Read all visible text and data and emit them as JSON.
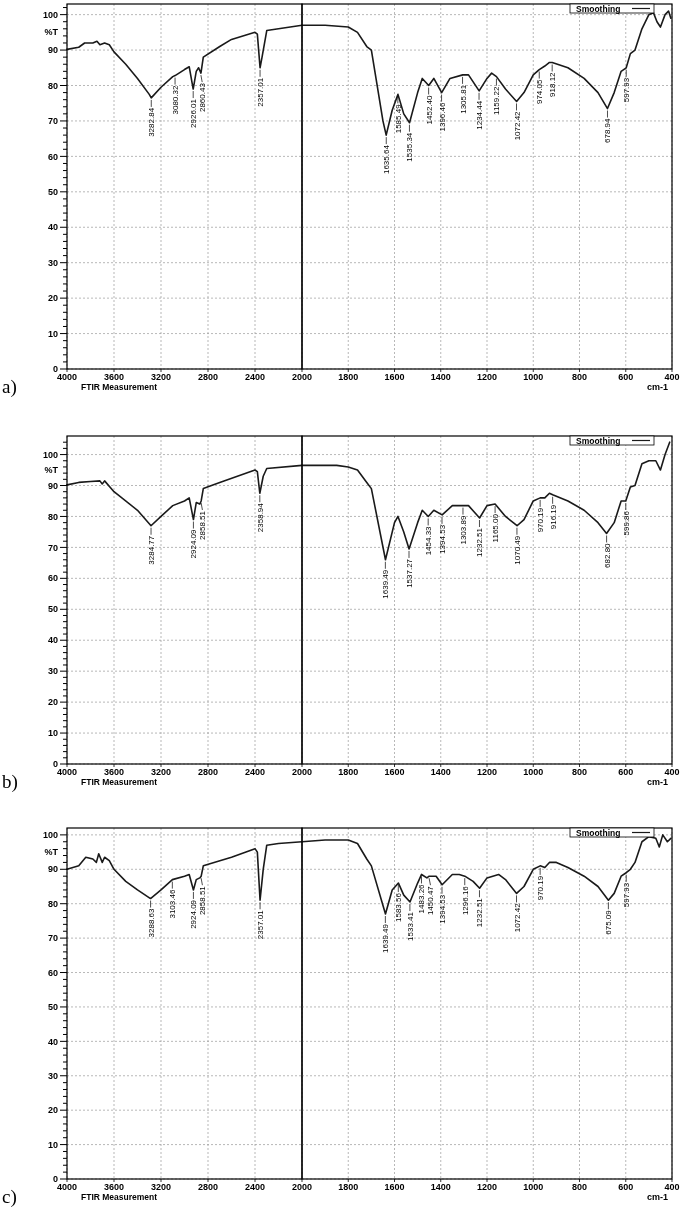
{
  "chart_data": [
    {
      "type": "line",
      "title": "a)",
      "ylabel": "%T",
      "grid": true,
      "marker": "none",
      "line_style": "solid",
      "tick_labels": true,
      "xlim": [
        4000,
        2000
      ],
      "xticks": [
        4000,
        3600,
        3200,
        2800,
        2400,
        2000
      ],
      "ylim": [
        0,
        103
      ],
      "yticks": [
        0,
        {
          "value": 2,
          "label": null
        },
        {
          "value": 4,
          "label": null
        },
        {
          "value": 6,
          "label": null
        },
        {
          "value": 8,
          "label": null
        },
        10,
        {
          "value": 12,
          "label": null
        },
        {
          "value": 14,
          "label": null
        },
        {
          "value": 16,
          "label": null
        },
        {
          "value": 18,
          "label": null
        },
        20,
        {
          "value": 22,
          "label": null
        },
        {
          "value": 24,
          "label": null
        },
        {
          "value": 26,
          "label": null
        },
        {
          "value": 28,
          "label": null
        },
        30,
        {
          "value": 32,
          "label": null
        },
        {
          "value": 34,
          "label": null
        },
        {
          "value": 36,
          "label": null
        },
        {
          "value": 38,
          "label": null
        },
        40,
        {
          "value": 42,
          "label": null
        },
        {
          "value": 44,
          "label": null
        },
        {
          "value": 46,
          "label": null
        },
        {
          "value": 48,
          "label": null
        },
        50,
        {
          "value": 52,
          "label": null
        },
        {
          "value": 54,
          "label": null
        },
        {
          "value": 56,
          "label": null
        },
        {
          "value": 58,
          "label": null
        },
        60,
        {
          "value": 62,
          "label": null
        },
        {
          "value": 64,
          "label": null
        },
        {
          "value": 66,
          "label": null
        },
        {
          "value": 68,
          "label": null
        },
        70,
        {
          "value": 72,
          "label": null
        },
        {
          "value": 74,
          "label": null
        },
        {
          "value": 76,
          "label": null
        },
        {
          "value": 78,
          "label": null
        },
        80,
        {
          "value": 82,
          "label": null
        },
        {
          "value": 84,
          "label": null
        },
        {
          "value": 86,
          "label": null
        },
        {
          "value": 88,
          "label": null
        },
        90,
        {
          "value": 92,
          "label": null
        },
        {
          "value": 94,
          "label": null
        },
        {
          "value": 96,
          "label": null
        },
        {
          "value": 98,
          "label": null
        },
        100,
        {
          "value": 102,
          "label": null
        }
      ],
      "series": [
        {
          "color": "#1a1a1a",
          "x": [
            4000,
            3900,
            3850,
            3780,
            3745,
            3720,
            3680,
            3640,
            3600,
            3500,
            3400,
            3300,
            3283,
            3200,
            3100,
            3080,
            3000,
            2960,
            2926,
            2900,
            2880,
            2860,
            2840,
            2700,
            2600,
            2400,
            2380,
            2357,
            2340,
            2300,
            2200,
            2100,
            2000
          ],
          "values": [
            90.2,
            90.8,
            92,
            92,
            92.5,
            91.5,
            92,
            91.5,
            89.5,
            86,
            82,
            77.5,
            76.5,
            79.5,
            82.5,
            82.8,
            84.5,
            85.3,
            79,
            84,
            85,
            83.5,
            88,
            91,
            93,
            95,
            94.5,
            85,
            88,
            95.5,
            96,
            96.5,
            97
          ]
        }
      ],
      "annotations": [
        "FTIR Measurement",
        {
          "text": "3282.84",
          "x": 3282.84,
          "y": 76.5
        },
        {
          "text": "3080.32",
          "x": 3080.32,
          "y": 82.8
        },
        {
          "text": "2926.01",
          "x": 2926.01,
          "y": 79
        },
        {
          "text": "2860.43",
          "x": 2860.43,
          "y": 83.5
        },
        {
          "text": "2357.01",
          "x": 2357.01,
          "y": 85
        }
      ]
    },
    {
      "type": "line",
      "xlabel": "cm-1",
      "legend": "top right",
      "grid": true,
      "marker": "none",
      "line_style": "solid",
      "tick_labels": "x",
      "xlim": [
        2000,
        400
      ],
      "xticks": [
        1800,
        1600,
        1400,
        1200,
        1000,
        800,
        600,
        400
      ],
      "ylim": [
        0,
        103
      ],
      "yticks": [
        0,
        10,
        20,
        30,
        40,
        50,
        60,
        70,
        80,
        90,
        100
      ],
      "series": [
        {
          "name": "Smoothing",
          "color": "#1a1a1a",
          "x": [
            2000,
            1900,
            1800,
            1760,
            1720,
            1700,
            1680,
            1650,
            1636,
            1610,
            1585,
            1560,
            1535,
            1500,
            1480,
            1452,
            1430,
            1396,
            1360,
            1305,
            1280,
            1234,
            1200,
            1180,
            1159,
            1120,
            1072,
            1040,
            1000,
            974,
            950,
            930,
            918,
            850,
            780,
            720,
            679,
            650,
            620,
            598,
            580,
            560,
            530,
            500,
            480,
            465,
            450,
            430,
            415,
            405
          ],
          "values": [
            97,
            97,
            96.5,
            95,
            91,
            90,
            82,
            70,
            66,
            73,
            77.5,
            72,
            69.5,
            78,
            82,
            80,
            82,
            78,
            82,
            83,
            83,
            78.5,
            82,
            83.5,
            82.5,
            79,
            75.5,
            78,
            83,
            84.5,
            85.5,
            86.5,
            86.5,
            85,
            82,
            78,
            73.5,
            78,
            84,
            85,
            89,
            90,
            96,
            100,
            100.5,
            98,
            96.5,
            100,
            101,
            99
          ]
        }
      ],
      "annotations": [
        {
          "text": "1635.64",
          "x": 1635.64,
          "y": 66
        },
        {
          "text": "1585.49",
          "x": 1585.49,
          "y": 77.5
        },
        {
          "text": "1535.34",
          "x": 1535.34,
          "y": 69.5
        },
        {
          "text": "1452.40",
          "x": 1452.4,
          "y": 80
        },
        {
          "text": "1396.46",
          "x": 1396.46,
          "y": 78
        },
        {
          "text": "1305.81",
          "x": 1305.81,
          "y": 83
        },
        {
          "text": "1234.44",
          "x": 1234.44,
          "y": 78.5
        },
        {
          "text": "1159.22",
          "x": 1159.22,
          "y": 82.5
        },
        {
          "text": "1072.42",
          "x": 1072.42,
          "y": 75.5
        },
        {
          "text": "974.05",
          "x": 974.05,
          "y": 84.5
        },
        {
          "text": "918.12",
          "x": 918.12,
          "y": 86.5
        },
        {
          "text": "678.94",
          "x": 678.94,
          "y": 73.5
        },
        {
          "text": "597.93",
          "x": 597.93,
          "y": 85
        }
      ]
    },
    {
      "type": "line",
      "title": "b)",
      "ylabel": "%T",
      "grid": true,
      "marker": "none",
      "line_style": "solid",
      "tick_labels": true,
      "xlim": [
        4000,
        2000
      ],
      "xticks": [
        4000,
        3600,
        3200,
        2800,
        2400,
        2000
      ],
      "ylim": [
        0,
        106
      ],
      "yticks": [
        0,
        {
          "value": 2,
          "label": null
        },
        {
          "value": 4,
          "label": null
        },
        {
          "value": 6,
          "label": null
        },
        {
          "value": 8,
          "label": null
        },
        10,
        {
          "value": 12,
          "label": null
        },
        {
          "value": 14,
          "label": null
        },
        {
          "value": 16,
          "label": null
        },
        {
          "value": 18,
          "label": null
        },
        20,
        {
          "value": 22,
          "label": null
        },
        {
          "value": 24,
          "label": null
        },
        {
          "value": 26,
          "label": null
        },
        {
          "value": 28,
          "label": null
        },
        30,
        {
          "value": 32,
          "label": null
        },
        {
          "value": 34,
          "label": null
        },
        {
          "value": 36,
          "label": null
        },
        {
          "value": 38,
          "label": null
        },
        40,
        {
          "value": 42,
          "label": null
        },
        {
          "value": 44,
          "label": null
        },
        {
          "value": 46,
          "label": null
        },
        {
          "value": 48,
          "label": null
        },
        50,
        {
          "value": 52,
          "label": null
        },
        {
          "value": 54,
          "label": null
        },
        {
          "value": 56,
          "label": null
        },
        {
          "value": 58,
          "label": null
        },
        60,
        {
          "value": 62,
          "label": null
        },
        {
          "value": 64,
          "label": null
        },
        {
          "value": 66,
          "label": null
        },
        {
          "value": 68,
          "label": null
        },
        70,
        {
          "value": 72,
          "label": null
        },
        {
          "value": 74,
          "label": null
        },
        {
          "value": 76,
          "label": null
        },
        {
          "value": 78,
          "label": null
        },
        80,
        {
          "value": 82,
          "label": null
        },
        {
          "value": 84,
          "label": null
        },
        {
          "value": 86,
          "label": null
        },
        {
          "value": 88,
          "label": null
        },
        90,
        {
          "value": 92,
          "label": null
        },
        {
          "value": 94,
          "label": null
        },
        {
          "value": 96,
          "label": null
        },
        {
          "value": 98,
          "label": null
        },
        100,
        {
          "value": 102,
          "label": null
        },
        {
          "value": 104,
          "label": null
        }
      ],
      "series": [
        {
          "color": "#1a1a1a",
          "x": [
            4000,
            3900,
            3800,
            3720,
            3700,
            3680,
            3600,
            3400,
            3285,
            3200,
            3100,
            3000,
            2960,
            2924,
            2900,
            2870,
            2858,
            2840,
            2700,
            2400,
            2380,
            2359,
            2330,
            2300,
            2000
          ],
          "values": [
            90.2,
            91,
            91.3,
            91.5,
            90.5,
            91.5,
            88,
            82,
            77,
            80,
            83.5,
            85,
            86,
            79,
            84.5,
            84,
            85,
            89,
            91,
            95,
            94.5,
            87.5,
            93,
            95.5,
            96.5
          ]
        }
      ],
      "annotations": [
        "FTIR Measurement",
        {
          "text": "3284.77",
          "x": 3284.77,
          "y": 77
        },
        {
          "text": "2924.09",
          "x": 2924.09,
          "y": 79
        },
        {
          "text": "2858.51",
          "x": 2858.51,
          "y": 85
        },
        {
          "text": "2358.94",
          "x": 2358.94,
          "y": 87.5
        }
      ]
    },
    {
      "type": "line",
      "xlabel": "cm-1",
      "legend": "top right",
      "grid": true,
      "marker": "none",
      "line_style": "solid",
      "tick_labels": "x",
      "xlim": [
        2000,
        400
      ],
      "xticks": [
        1800,
        1600,
        1400,
        1200,
        1000,
        800,
        600,
        400
      ],
      "ylim": [
        0,
        106
      ],
      "yticks": [
        0,
        10,
        20,
        30,
        40,
        50,
        60,
        70,
        80,
        90,
        100
      ],
      "series": [
        {
          "name": "Smoothing",
          "color": "#1a1a1a",
          "x": [
            2000,
            1850,
            1800,
            1760,
            1720,
            1700,
            1639,
            1600,
            1585,
            1560,
            1537,
            1500,
            1480,
            1454,
            1430,
            1394,
            1350,
            1304,
            1280,
            1232,
            1200,
            1165,
            1120,
            1070,
            1040,
            1000,
            970,
            950,
            930,
            916,
            850,
            780,
            720,
            683,
            650,
            620,
            600,
            580,
            560,
            530,
            500,
            470,
            450,
            430,
            410
          ],
          "values": [
            96.5,
            96.5,
            96,
            95,
            91,
            89,
            66,
            78,
            80,
            75,
            69.5,
            78,
            82,
            80,
            82,
            80.5,
            83.5,
            83.5,
            83.5,
            79.5,
            83.5,
            84,
            80,
            77,
            79,
            85,
            86,
            86,
            87.5,
            87,
            85,
            82,
            78,
            74.5,
            78,
            85,
            85,
            89.5,
            90,
            97,
            98,
            98,
            95,
            100,
            104
          ]
        }
      ],
      "annotations": [
        {
          "text": "1639.49",
          "x": 1639.49,
          "y": 66
        },
        {
          "text": "1537.27",
          "x": 1537.27,
          "y": 69.5
        },
        {
          "text": "1454.33",
          "x": 1454.33,
          "y": 80
        },
        {
          "text": "1394.53",
          "x": 1394.53,
          "y": 80.5
        },
        {
          "text": "1303.89",
          "x": 1303.89,
          "y": 83.5
        },
        {
          "text": "1232.51",
          "x": 1232.51,
          "y": 79.5
        },
        {
          "text": "1165.00",
          "x": 1165,
          "y": 84
        },
        {
          "text": "1070.49",
          "x": 1070.49,
          "y": 77
        },
        {
          "text": "970.19",
          "x": 970.19,
          "y": 86
        },
        {
          "text": "916.19",
          "x": 916.19,
          "y": 87
        },
        {
          "text": "682.80",
          "x": 682.8,
          "y": 74.5
        },
        {
          "text": "599.86",
          "x": 599.86,
          "y": 85
        }
      ]
    },
    {
      "type": "line",
      "title": "c)",
      "ylabel": "%T",
      "grid": true,
      "marker": "none",
      "line_style": "solid",
      "tick_labels": true,
      "xlim": [
        4000,
        2000
      ],
      "xticks": [
        4000,
        3600,
        3200,
        2800,
        2400,
        2000
      ],
      "ylim": [
        0,
        102
      ],
      "yticks": [
        0,
        {
          "value": 2,
          "label": null
        },
        {
          "value": 4,
          "label": null
        },
        {
          "value": 6,
          "label": null
        },
        {
          "value": 8,
          "label": null
        },
        10,
        {
          "value": 12,
          "label": null
        },
        {
          "value": 14,
          "label": null
        },
        {
          "value": 16,
          "label": null
        },
        {
          "value": 18,
          "label": null
        },
        20,
        {
          "value": 22,
          "label": null
        },
        {
          "value": 24,
          "label": null
        },
        {
          "value": 26,
          "label": null
        },
        {
          "value": 28,
          "label": null
        },
        30,
        {
          "value": 32,
          "label": null
        },
        {
          "value": 34,
          "label": null
        },
        {
          "value": 36,
          "label": null
        },
        {
          "value": 38,
          "label": null
        },
        40,
        {
          "value": 42,
          "label": null
        },
        {
          "value": 44,
          "label": null
        },
        {
          "value": 46,
          "label": null
        },
        {
          "value": 48,
          "label": null
        },
        50,
        {
          "value": 52,
          "label": null
        },
        {
          "value": 54,
          "label": null
        },
        {
          "value": 56,
          "label": null
        },
        {
          "value": 58,
          "label": null
        },
        60,
        {
          "value": 62,
          "label": null
        },
        {
          "value": 64,
          "label": null
        },
        {
          "value": 66,
          "label": null
        },
        {
          "value": 68,
          "label": null
        },
        70,
        {
          "value": 72,
          "label": null
        },
        {
          "value": 74,
          "label": null
        },
        {
          "value": 76,
          "label": null
        },
        {
          "value": 78,
          "label": null
        },
        80,
        {
          "value": 82,
          "label": null
        },
        {
          "value": 84,
          "label": null
        },
        {
          "value": 86,
          "label": null
        },
        {
          "value": 88,
          "label": null
        },
        90,
        {
          "value": 92,
          "label": null
        },
        {
          "value": 94,
          "label": null
        },
        {
          "value": 96,
          "label": null
        },
        {
          "value": 98,
          "label": null
        },
        100
      ],
      "series": [
        {
          "color": "#1a1a1a",
          "x": [
            4000,
            3900,
            3840,
            3780,
            3750,
            3730,
            3700,
            3680,
            3640,
            3600,
            3500,
            3400,
            3289,
            3200,
            3103,
            3000,
            2960,
            2924,
            2900,
            2870,
            2858,
            2840,
            2600,
            2400,
            2380,
            2357,
            2330,
            2300,
            2200,
            2000
          ],
          "values": [
            90,
            91,
            93.5,
            93,
            92,
            94.5,
            92,
            93.5,
            92.5,
            90,
            86.5,
            84,
            81.5,
            84,
            87,
            88,
            88.5,
            84,
            87,
            87.5,
            88,
            91,
            93.5,
            96,
            95,
            81,
            90,
            97,
            97.5,
            98
          ]
        }
      ],
      "annotations": [
        "FTIR Measurement",
        {
          "text": "3288.63",
          "x": 3288.63,
          "y": 81.5
        },
        {
          "text": "3103.46",
          "x": 3103.46,
          "y": 87
        },
        {
          "text": "2924.09",
          "x": 2924.09,
          "y": 84
        },
        {
          "text": "2858.51",
          "x": 2858.51,
          "y": 88
        },
        {
          "text": "2357.01",
          "x": 2357.01,
          "y": 81
        }
      ]
    },
    {
      "type": "line",
      "xlabel": "cm-1",
      "legend": "top right",
      "grid": true,
      "marker": "none",
      "line_style": "solid",
      "tick_labels": "x",
      "xlim": [
        2000,
        400
      ],
      "xticks": [
        1800,
        1600,
        1400,
        1200,
        1000,
        800,
        600,
        400
      ],
      "ylim": [
        0,
        102
      ],
      "yticks": [
        0,
        10,
        20,
        30,
        40,
        50,
        60,
        70,
        80,
        90,
        100
      ],
      "series": [
        {
          "name": "Smoothing",
          "color": "#1a1a1a",
          "x": [
            2000,
            1900,
            1800,
            1760,
            1720,
            1700,
            1639,
            1610,
            1583,
            1560,
            1533,
            1500,
            1483,
            1460,
            1450,
            1420,
            1394,
            1350,
            1320,
            1296,
            1260,
            1232,
            1200,
            1150,
            1120,
            1072,
            1040,
            1000,
            970,
            950,
            930,
            900,
            850,
            780,
            720,
            675,
            650,
            620,
            598,
            580,
            560,
            530,
            500,
            470,
            455,
            440,
            420,
            405
          ],
          "values": [
            98,
            98.5,
            98.5,
            97.5,
            93,
            91,
            77,
            84,
            86,
            82.5,
            80.5,
            86,
            88.5,
            87.5,
            88,
            88,
            85.5,
            88.5,
            88.5,
            88,
            86.5,
            84.5,
            87.5,
            88.5,
            87,
            83,
            85,
            90,
            91,
            90.5,
            92,
            92,
            90.5,
            88,
            85,
            81,
            83,
            88,
            89,
            90,
            92,
            98,
            99.5,
            99,
            96.5,
            100,
            98,
            99
          ]
        }
      ],
      "annotations": [
        {
          "text": "1639.49",
          "x": 1639.49,
          "y": 77
        },
        {
          "text": "1583.56",
          "x": 1583.56,
          "y": 86
        },
        {
          "text": "1533.41",
          "x": 1533.41,
          "y": 80.5
        },
        {
          "text": "1483.26",
          "x": 1483.26,
          "y": 88.5
        },
        {
          "text": "1450.47",
          "x": 1450.47,
          "y": 88
        },
        {
          "text": "1394.53",
          "x": 1394.53,
          "y": 85.5
        },
        {
          "text": "1296.16",
          "x": 1296.16,
          "y": 88
        },
        {
          "text": "1232.51",
          "x": 1232.51,
          "y": 84.5
        },
        {
          "text": "1072.42",
          "x": 1072.42,
          "y": 83
        },
        {
          "text": "970.19",
          "x": 970.19,
          "y": 91
        },
        {
          "text": "675.09",
          "x": 675.09,
          "y": 81
        },
        {
          "text": "597.93",
          "x": 597.93,
          "y": 89
        }
      ]
    }
  ]
}
